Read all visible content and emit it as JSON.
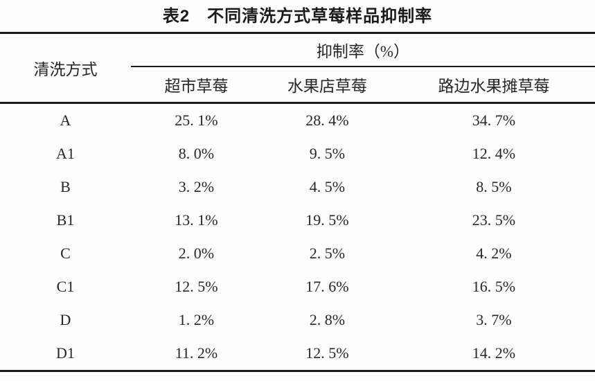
{
  "page": {
    "background": "#fdfdfd",
    "text_color": "#262626",
    "rule_color": "#1a1a1a"
  },
  "table": {
    "title": "表2　不同清洗方式草莓样品抑制率",
    "row_header": "清洗方式",
    "group_header": "抑制率（%）",
    "columns": [
      "超市草莓",
      "水果店草莓",
      "路边水果摊草莓"
    ],
    "rows": [
      {
        "label": "A",
        "values": [
          "25. 1%",
          "28. 4%",
          "34. 7%"
        ]
      },
      {
        "label": "A1",
        "values": [
          "8. 0%",
          "9. 5%",
          "12. 4%"
        ]
      },
      {
        "label": "B",
        "values": [
          "3. 2%",
          "4. 5%",
          "8. 5%"
        ]
      },
      {
        "label": "B1",
        "values": [
          "13. 1%",
          "19. 5%",
          "23. 5%"
        ]
      },
      {
        "label": "C",
        "values": [
          "2. 0%",
          "2. 5%",
          "4. 2%"
        ]
      },
      {
        "label": "C1",
        "values": [
          "12. 5%",
          "17. 6%",
          "16. 5%"
        ]
      },
      {
        "label": "D",
        "values": [
          "1. 2%",
          "2. 8%",
          "3. 7%"
        ]
      },
      {
        "label": "D1",
        "values": [
          "11. 2%",
          "12. 5%",
          "14. 2%"
        ]
      }
    ]
  },
  "chart_data": {
    "type": "table",
    "title": "表2　不同清洗方式草莓样品抑制率",
    "xlabel": "清洗方式",
    "ylabel": "抑制率（%）",
    "categories": [
      "A",
      "A1",
      "B",
      "B1",
      "C",
      "C1",
      "D",
      "D1"
    ],
    "series": [
      {
        "name": "超市草莓",
        "values": [
          25.1,
          8.0,
          3.2,
          13.1,
          2.0,
          12.5,
          1.2,
          11.2
        ]
      },
      {
        "name": "水果店草莓",
        "values": [
          28.4,
          9.5,
          4.5,
          19.5,
          2.5,
          17.6,
          2.8,
          12.5
        ]
      },
      {
        "name": "路边水果摊草莓",
        "values": [
          34.7,
          12.4,
          8.5,
          23.5,
          4.2,
          16.5,
          3.7,
          14.2
        ]
      }
    ]
  }
}
